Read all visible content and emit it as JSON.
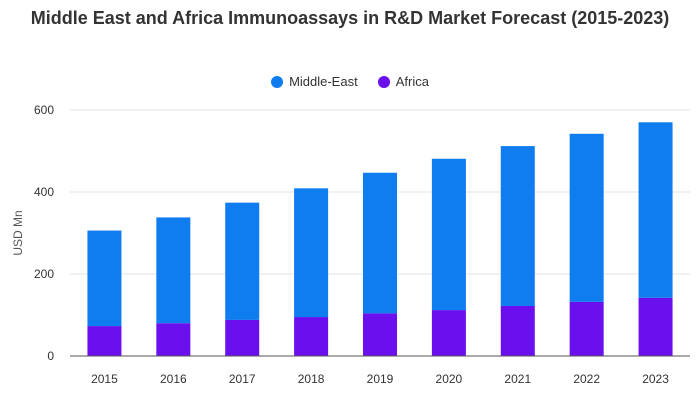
{
  "chart_data": {
    "type": "bar",
    "stacked": true,
    "title": "Middle East and Africa Immunoassays in R&D Market Forecast (2015-2023)",
    "ylabel": "USD Mn",
    "xlabel": "",
    "ylim": [
      0,
      600
    ],
    "yticks": [
      0,
      200,
      400,
      600
    ],
    "categories": [
      "2015",
      "2016",
      "2017",
      "2018",
      "2019",
      "2020",
      "2021",
      "2022",
      "2023"
    ],
    "series": [
      {
        "name": "Africa",
        "color": "#6a10ee",
        "values": [
          73,
          80,
          88,
          95,
          104,
          112,
          122,
          132,
          142
        ]
      },
      {
        "name": "Middle-East",
        "color": "#0f7cf0",
        "values": [
          233,
          258,
          286,
          314,
          343,
          369,
          390,
          410,
          428
        ]
      }
    ],
    "legend_order": [
      "Middle-East",
      "Africa"
    ],
    "legend_position": "top-center",
    "grid": "horizontal"
  }
}
